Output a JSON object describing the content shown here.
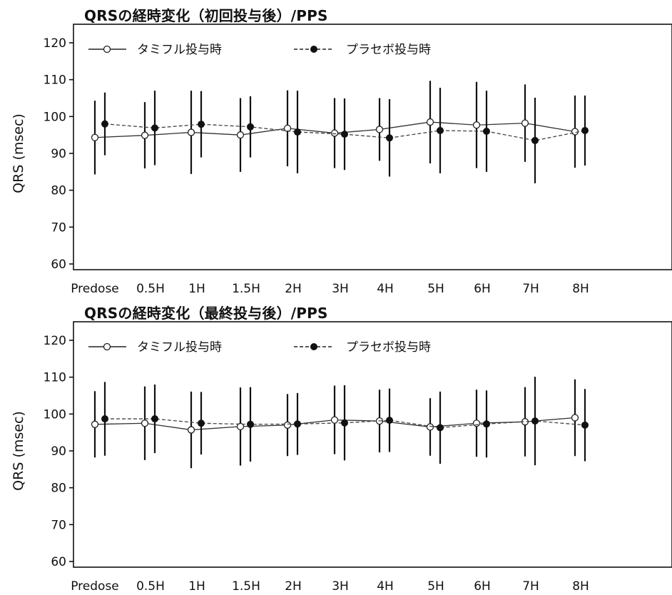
{
  "chart_data": [
    {
      "type": "line",
      "title": "QRSの経時変化（初回投与後）/PPS",
      "xlabel": "",
      "ylabel": "QRS (msec)",
      "ylim": [
        60,
        120
      ],
      "yticks": [
        60,
        70,
        80,
        90,
        100,
        110,
        120
      ],
      "categories": [
        "Predose",
        "0.5H",
        "1H",
        "1.5H",
        "2H",
        "3H",
        "4H",
        "5H",
        "6H",
        "7H",
        "8H"
      ],
      "legend_position": "top",
      "grid": false,
      "series": [
        {
          "name": "タミフル投与時",
          "marker": "open-circle",
          "line": "solid",
          "values": [
            94.3,
            94.9,
            95.7,
            95.0,
            96.8,
            95.5,
            96.5,
            98.5,
            97.7,
            98.2,
            95.9
          ],
          "error": [
            10.0,
            9.0,
            11.3,
            10.0,
            10.3,
            9.5,
            8.5,
            11.2,
            11.7,
            10.5,
            9.8
          ]
        },
        {
          "name": "プラセボ投与時",
          "marker": "filled-circle",
          "line": "dashed",
          "values": [
            98.0,
            96.9,
            97.9,
            97.2,
            95.8,
            95.2,
            94.2,
            96.2,
            96.0,
            93.5,
            96.2
          ],
          "error": [
            8.5,
            10.1,
            9.0,
            8.3,
            11.2,
            9.7,
            10.5,
            11.6,
            11.0,
            11.6,
            9.5
          ]
        }
      ]
    },
    {
      "type": "line",
      "title": "QRSの経時変化（最終投与後）/PPS",
      "xlabel": "",
      "ylabel": "QRS (msec)",
      "ylim": [
        60,
        120
      ],
      "yticks": [
        60,
        70,
        80,
        90,
        100,
        110,
        120
      ],
      "categories": [
        "Predose",
        "0.5H",
        "1H",
        "1.5H",
        "2H",
        "3H",
        "4H",
        "5H",
        "6H",
        "7H",
        "8H"
      ],
      "legend_position": "top",
      "grid": false,
      "series": [
        {
          "name": "タミフル投与時",
          "marker": "open-circle",
          "line": "solid",
          "values": [
            97.2,
            97.5,
            95.7,
            96.6,
            97.0,
            98.4,
            98.1,
            96.5,
            97.5,
            97.9,
            99.0
          ],
          "error": [
            9.0,
            10.0,
            10.4,
            10.6,
            8.4,
            9.3,
            8.5,
            7.8,
            9.1,
            9.4,
            10.4
          ]
        },
        {
          "name": "プラセボ投与時",
          "marker": "filled-circle",
          "line": "dashed",
          "values": [
            98.7,
            98.7,
            97.5,
            97.2,
            97.3,
            97.6,
            98.3,
            96.3,
            97.3,
            98.1,
            97.0
          ],
          "error": [
            10.0,
            9.3,
            8.5,
            10.1,
            8.4,
            10.2,
            8.6,
            9.8,
            9.1,
            12.0,
            9.8
          ]
        }
      ]
    }
  ]
}
